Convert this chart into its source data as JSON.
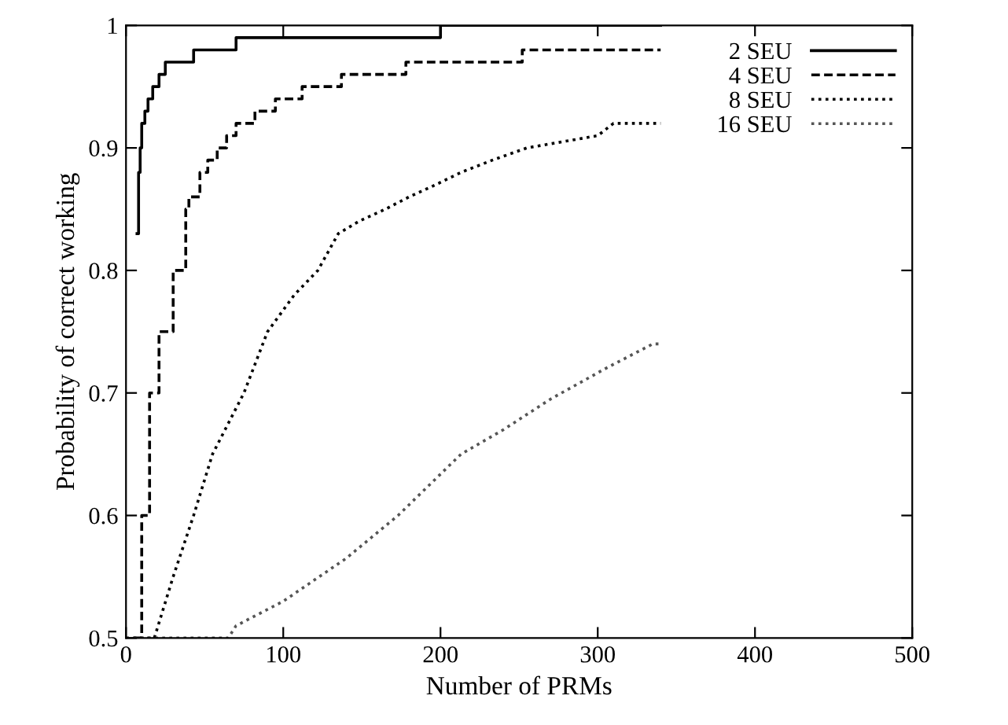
{
  "chart_data": {
    "type": "line",
    "xlabel": "Number of PRMs",
    "ylabel": "Probability of correct working",
    "xlim": [
      0,
      500
    ],
    "ylim": [
      0.5,
      1
    ],
    "xticks": [
      0,
      100,
      200,
      300,
      400,
      500
    ],
    "yticks": [
      0.5,
      0.6,
      0.7,
      0.8,
      0.9,
      1
    ],
    "grid": false,
    "legend": "top right",
    "series": [
      {
        "name": "2 SEU",
        "type": "step",
        "line_style": "solid",
        "color": "#000000",
        "x": [
          7,
          8,
          9,
          10,
          12,
          14,
          17,
          21,
          25,
          32,
          43,
          70,
          200,
          340
        ],
        "values": [
          0.83,
          0.88,
          0.9,
          0.92,
          0.93,
          0.94,
          0.95,
          0.96,
          0.97,
          0.97,
          0.98,
          0.99,
          1.0,
          1.0
        ]
      },
      {
        "name": "4 SEU",
        "type": "step",
        "line_style": "dashed",
        "color": "#000000",
        "x": [
          5,
          10,
          15,
          21,
          30,
          38,
          40,
          47,
          52,
          58,
          64,
          70,
          82,
          95,
          112,
          137,
          178,
          252,
          340
        ],
        "values": [
          0.5,
          0.6,
          0.7,
          0.75,
          0.8,
          0.85,
          0.86,
          0.88,
          0.89,
          0.9,
          0.91,
          0.92,
          0.93,
          0.94,
          0.95,
          0.96,
          0.97,
          0.98,
          0.98
        ]
      },
      {
        "name": "8 SEU",
        "line_style": "dotted",
        "color": "#000000",
        "x": [
          0,
          18,
          30,
          43,
          55,
          75,
          90,
          107,
          122,
          135,
          148,
          165,
          180,
          197,
          213,
          233,
          255,
          300,
          310,
          340
        ],
        "values": [
          0.5,
          0.5,
          0.55,
          0.6,
          0.65,
          0.7,
          0.75,
          0.78,
          0.8,
          0.83,
          0.84,
          0.85,
          0.86,
          0.87,
          0.88,
          0.89,
          0.9,
          0.91,
          0.92,
          0.92
        ]
      },
      {
        "name": "16 SEU",
        "line_style": "dotted",
        "color": "#555555",
        "x": [
          5,
          65,
          70,
          100,
          140,
          173,
          213,
          240,
          270,
          305,
          335,
          340
        ],
        "values": [
          0.5,
          0.5,
          0.51,
          0.53,
          0.565,
          0.6,
          0.65,
          0.67,
          0.695,
          0.72,
          0.74,
          0.74
        ]
      }
    ]
  }
}
